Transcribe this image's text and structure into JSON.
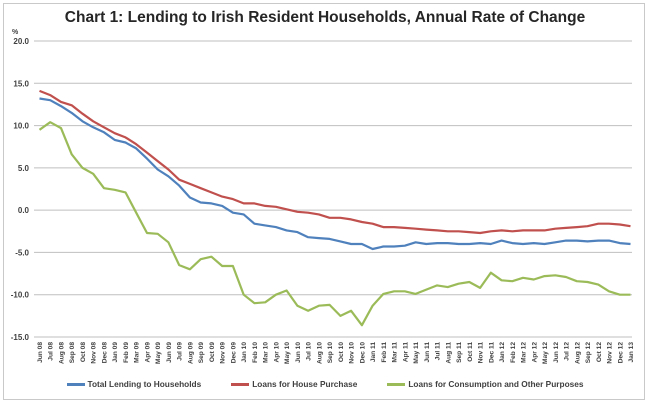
{
  "chart_data": {
    "type": "line",
    "title": "Chart 1: Lending to Irish Resident Households, Annual Rate of Change",
    "ylabel": "%",
    "xlabel": "",
    "ylim": [
      -15,
      20
    ],
    "yticks": [
      "20.0",
      "15.0",
      "10.0",
      "5.0",
      "0.0",
      "-5.0",
      "-10.0",
      "-15.0"
    ],
    "ytick_values": [
      20,
      15,
      10,
      5,
      0,
      -5,
      -10,
      -15
    ],
    "grid": true,
    "legend_position": "bottom",
    "x": [
      "Jun 08",
      "Jul 08",
      "Aug 08",
      "Sep 08",
      "Oct 08",
      "Nov 08",
      "Dec 08",
      "Jan 09",
      "Feb 09",
      "Mar 09",
      "Apr 09",
      "May 09",
      "Jun 09",
      "Jul 09",
      "Aug 09",
      "Sep 09",
      "Oct 09",
      "Nov 09",
      "Dec 09",
      "Jan 10",
      "Feb 10",
      "Mar 10",
      "Apr 10",
      "May 10",
      "Jun 10",
      "Jul 10",
      "Aug 10",
      "Sep 10",
      "Oct 10",
      "Nov 10",
      "Dec 10",
      "Jan 11",
      "Feb 11",
      "Mar 11",
      "Apr 11",
      "May 11",
      "Jun 11",
      "Jul 11",
      "Aug 11",
      "Sep 11",
      "Oct 11",
      "Nov 11",
      "Dec 11",
      "Jan 12",
      "Feb 12",
      "Mar 12",
      "Apr 12",
      "May 12",
      "Jun 12",
      "Jul 12",
      "Aug 12",
      "Sep 12",
      "Oct 12",
      "Nov 12",
      "Dec 12",
      "Jan 13"
    ],
    "series": [
      {
        "name": "Total Lending to Households",
        "color": "#4f81bd",
        "values": [
          13.2,
          13.0,
          12.3,
          11.5,
          10.5,
          9.8,
          9.2,
          8.3,
          8.0,
          7.3,
          6.1,
          4.8,
          4.0,
          2.9,
          1.5,
          0.9,
          0.8,
          0.5,
          -0.3,
          -0.5,
          -1.6,
          -1.8,
          -2.0,
          -2.4,
          -2.6,
          -3.2,
          -3.3,
          -3.4,
          -3.7,
          -4.0,
          -4.0,
          -4.6,
          -4.3,
          -4.3,
          -4.2,
          -3.8,
          -4.0,
          -3.9,
          -3.9,
          -4.0,
          -4.0,
          -3.9,
          -4.0,
          -3.6,
          -3.9,
          -4.0,
          -3.9,
          -4.0,
          -3.8,
          -3.6,
          -3.6,
          -3.7,
          -3.6,
          -3.6,
          -3.9,
          -4.0
        ]
      },
      {
        "name": "Loans for House Purchase",
        "color": "#c0504d",
        "values": [
          14.1,
          13.6,
          12.8,
          12.4,
          11.4,
          10.5,
          9.8,
          9.1,
          8.6,
          7.8,
          6.8,
          5.8,
          4.8,
          3.6,
          3.1,
          2.6,
          2.1,
          1.6,
          1.3,
          0.8,
          0.8,
          0.5,
          0.4,
          0.1,
          -0.2,
          -0.3,
          -0.5,
          -0.9,
          -0.9,
          -1.1,
          -1.4,
          -1.6,
          -2.0,
          -2.0,
          -2.1,
          -2.2,
          -2.3,
          -2.4,
          -2.5,
          -2.5,
          -2.6,
          -2.7,
          -2.5,
          -2.4,
          -2.5,
          -2.4,
          -2.4,
          -2.4,
          -2.2,
          -2.1,
          -2.0,
          -1.9,
          -1.6,
          -1.6,
          -1.7,
          -1.9
        ]
      },
      {
        "name": "Loans for Consumption and Other Purposes",
        "color": "#9bbb59",
        "values": [
          9.5,
          10.4,
          9.7,
          6.6,
          5.0,
          4.3,
          2.6,
          2.4,
          2.1,
          -0.3,
          -2.7,
          -2.8,
          -3.8,
          -6.5,
          -7.0,
          -5.8,
          -5.5,
          -6.6,
          -6.6,
          -10.0,
          -11.0,
          -10.9,
          -10.0,
          -9.5,
          -11.3,
          -11.9,
          -11.3,
          -11.2,
          -12.5,
          -11.9,
          -13.6,
          -11.3,
          -9.9,
          -9.6,
          -9.6,
          -9.9,
          -9.4,
          -8.9,
          -9.1,
          -8.7,
          -8.5,
          -9.2,
          -7.4,
          -8.3,
          -8.4,
          -8.0,
          -8.2,
          -7.8,
          -7.7,
          -7.9,
          -8.4,
          -8.5,
          -8.8,
          -9.6,
          -10.0,
          -10.0
        ]
      }
    ]
  }
}
